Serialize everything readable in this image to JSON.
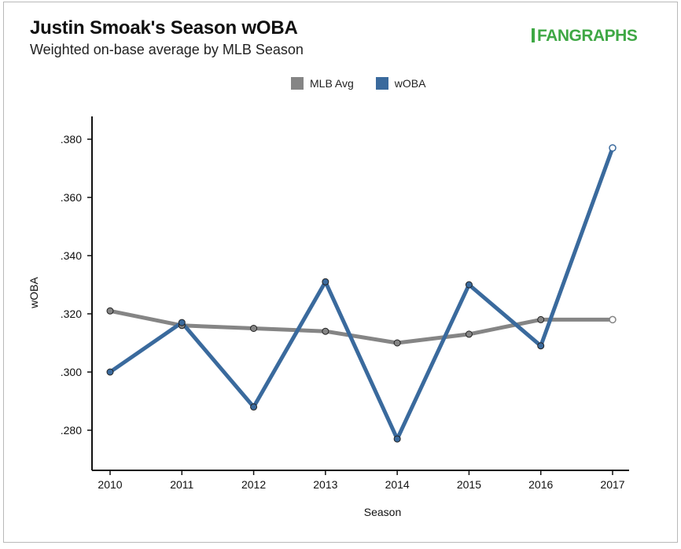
{
  "header": {
    "title": "Justin Smoak's Season wOBA",
    "subtitle": "Weighted on-base average by MLB Season",
    "logo_text": "FANGRAPHS"
  },
  "colors": {
    "mlb_avg": "#858585",
    "woba": "#3a6a9d",
    "logo": "#3fa845"
  },
  "chart_data": {
    "type": "line",
    "title": "Justin Smoak's Season wOBA",
    "subtitle": "Weighted on-base average by MLB Season",
    "xlabel": "Season",
    "ylabel": "wOBA",
    "categories": [
      "2010",
      "2011",
      "2012",
      "2013",
      "2014",
      "2015",
      "2016",
      "2017"
    ],
    "ylim": [
      0.27,
      0.388
    ],
    "yticks": [
      0.28,
      0.3,
      0.32,
      0.34,
      0.36,
      0.38
    ],
    "ytick_labels": [
      ".280",
      ".300",
      ".320",
      ".340",
      ".360",
      ".380"
    ],
    "legend_position": "top-center",
    "grid": false,
    "series": [
      {
        "name": "MLB Avg",
        "color": "#858585",
        "values": [
          0.321,
          0.316,
          0.315,
          0.314,
          0.31,
          0.313,
          0.318,
          0.318
        ]
      },
      {
        "name": "wOBA",
        "color": "#3a6a9d",
        "values": [
          0.3,
          0.317,
          0.288,
          0.331,
          0.277,
          0.33,
          0.309,
          0.377
        ]
      }
    ]
  }
}
